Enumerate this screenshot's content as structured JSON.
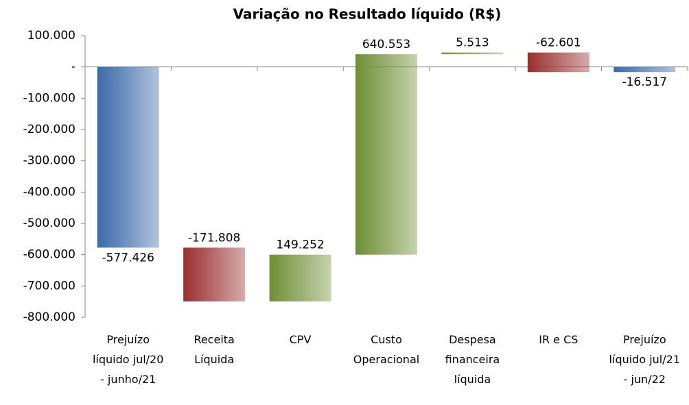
{
  "chart_data": {
    "type": "waterfall",
    "title": "Variação no Resultado líquido (R$)",
    "categories": [
      "Prejuízo líquido jul/20 - junho/21",
      "Receita Líquida",
      "CPV",
      "Custo Operacional",
      "Despesa financeira líquida",
      "IR e CS",
      "Prejuízo líquido jul/21 - jun/22"
    ],
    "values": [
      -577426,
      -171808,
      149252,
      640553,
      5513,
      -62601,
      -16517
    ],
    "value_labels": [
      "-577.426",
      "-171.808",
      "149.252",
      "640.553",
      "5.513",
      "-62.601",
      "-16.517"
    ],
    "total_color": "#3a6aa9",
    "increase_color": "#6f8f35",
    "decrease_color": "#9a2f2f",
    "ylim": [
      -800000,
      100000
    ],
    "yticks": [
      {
        "value": 100000,
        "label": "100.000"
      },
      {
        "value": 0,
        "label": "-"
      },
      {
        "value": -100000,
        "label": "-100.000"
      },
      {
        "value": -200000,
        "label": "-200.000"
      },
      {
        "value": -300000,
        "label": "-300.000"
      },
      {
        "value": -400000,
        "label": "-400.000"
      },
      {
        "value": -500000,
        "label": "-500.000"
      },
      {
        "value": -600000,
        "label": "-600.000"
      },
      {
        "value": -700000,
        "label": "-700.000"
      },
      {
        "value": -800000,
        "label": "-800.000"
      }
    ],
    "grid": false
  }
}
